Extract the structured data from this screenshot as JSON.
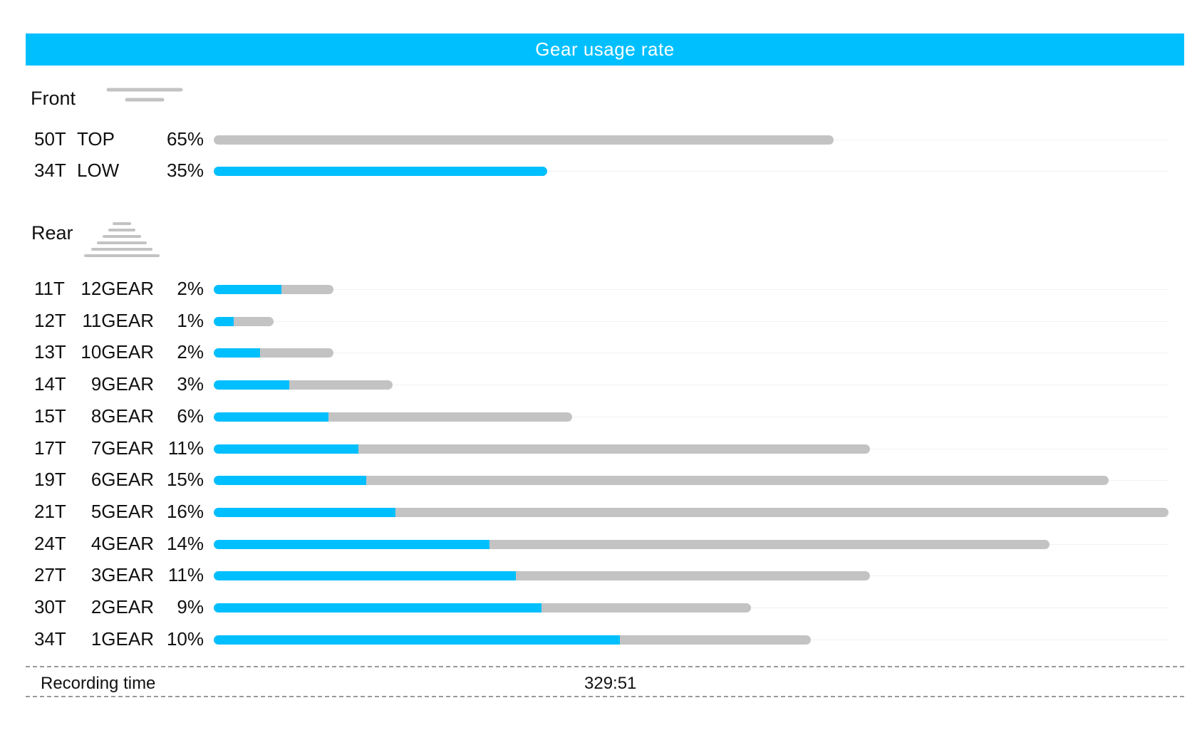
{
  "header": {
    "title": "Gear usage rate"
  },
  "colors": {
    "accent": "#00bfff",
    "track": "#c3c3c3"
  },
  "chart_data": [
    {
      "type": "bar",
      "title": "Front",
      "categories": [
        "50T",
        "34T"
      ],
      "gear_labels": [
        "TOP",
        "LOW"
      ],
      "percent_labels": [
        "65%",
        "35%"
      ],
      "values": [
        65,
        35
      ],
      "highlight_fraction": [
        0,
        1
      ],
      "xlim": [
        0,
        100
      ]
    },
    {
      "type": "bar",
      "title": "Rear",
      "categories": [
        "11T",
        "12T",
        "13T",
        "14T",
        "15T",
        "17T",
        "19T",
        "21T",
        "24T",
        "27T",
        "30T",
        "34T"
      ],
      "gear_labels": [
        "12GEAR",
        "11GEAR",
        "10GEAR",
        "9GEAR",
        "8GEAR",
        "7GEAR",
        "6GEAR",
        "5GEAR",
        "4GEAR",
        "3GEAR",
        "2GEAR",
        "1GEAR"
      ],
      "percent_labels": [
        "2%",
        "1%",
        "2%",
        "3%",
        "6%",
        "11%",
        "15%",
        "16%",
        "14%",
        "11%",
        "9%",
        "10%"
      ],
      "values": [
        2,
        1,
        2,
        3,
        6,
        11,
        15,
        16,
        14,
        11,
        9,
        10
      ],
      "highlight_fraction": [
        0.57,
        0.34,
        0.39,
        0.42,
        0.32,
        0.22,
        0.17,
        0.19,
        0.33,
        0.46,
        0.61,
        0.68
      ],
      "xlim": [
        0,
        16
      ]
    }
  ],
  "footer": {
    "label": "Recording time",
    "value": "329:51"
  }
}
